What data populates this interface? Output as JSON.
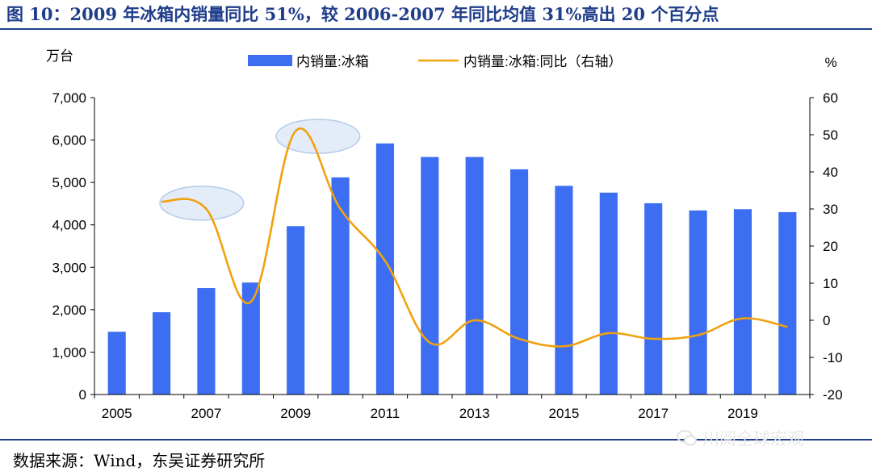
{
  "header": {
    "title": "图 10：2009 年冰箱内销量同比 51%，较 2006-2007 年同比均值 31%高出 20 个百分点"
  },
  "footer": {
    "source": "数据来源：Wind，东吴证券研究所",
    "watermark": "川阅全球宏观",
    "watermark_icon": "wechat-icon"
  },
  "chart_data": {
    "type": "bar",
    "title": "",
    "left_unit": "万台",
    "right_unit": "%",
    "x": [
      2005,
      2006,
      2007,
      2008,
      2009,
      2010,
      2011,
      2012,
      2013,
      2014,
      2015,
      2016,
      2017,
      2018,
      2019,
      2020
    ],
    "x_tick_labels": [
      "2005",
      "2007",
      "2009",
      "2011",
      "2013",
      "2015",
      "2017",
      "2019"
    ],
    "ylim_left": [
      0,
      7000
    ],
    "y_ticks_left": [
      "0",
      "1,000",
      "2,000",
      "3,000",
      "4,000",
      "5,000",
      "6,000",
      "7,000"
    ],
    "ylim_right": [
      -20,
      60
    ],
    "y_ticks_right": [
      "-20",
      "-10",
      "0",
      "10",
      "20",
      "30",
      "40",
      "50",
      "60"
    ],
    "legend_position": "top",
    "grid": false,
    "series": [
      {
        "name": "内销量:冰箱",
        "type": "bar",
        "axis": "left",
        "color": "#3d6ef2",
        "values": [
          1480,
          1940,
          2510,
          2640,
          3970,
          5120,
          5920,
          5600,
          5600,
          5310,
          4920,
          4760,
          4510,
          4340,
          4370,
          4300
        ]
      },
      {
        "name": "内销量:冰箱:同比（右轴）",
        "type": "line",
        "axis": "right",
        "color": "#f0a20e",
        "values": [
          null,
          32,
          30,
          5,
          51,
          30,
          16,
          -6,
          0,
          -5,
          -7,
          -3.5,
          -5,
          -4,
          0.5,
          -1.8
        ]
      }
    ],
    "highlights": [
      {
        "note": "2006-2007 同比",
        "x_from": 2006,
        "x_to": 2007.8,
        "y_right": 32
      },
      {
        "note": "2009 同比",
        "x_from": 2008.6,
        "x_to": 2010.4,
        "y_right": 50
      }
    ]
  }
}
